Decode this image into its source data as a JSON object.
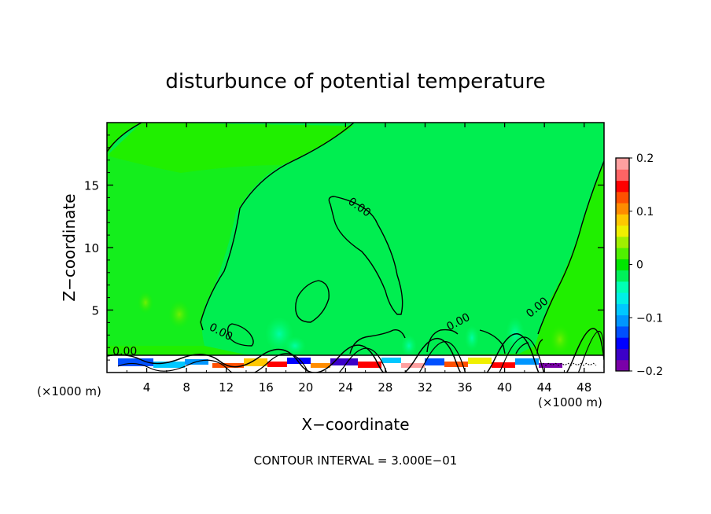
{
  "chart_data": {
    "type": "heatmap",
    "title": "disturbunce of potential temperature",
    "xlabel": "X−coordinate",
    "ylabel": "Z−coordinate",
    "x_unit_left": "(×1000 m)",
    "x_unit_right": "(×1000 m)",
    "xlim": [
      0,
      50
    ],
    "ylim": [
      0,
      20
    ],
    "x_ticks": [
      4,
      8,
      12,
      16,
      20,
      24,
      28,
      32,
      36,
      40,
      44,
      48
    ],
    "x_tick_labels": [
      "4",
      "8",
      "12",
      "16",
      "20",
      "24",
      "28",
      "32",
      "36",
      "40",
      "44",
      "48"
    ],
    "y_ticks": [
      5,
      10,
      15
    ],
    "y_tick_labels": [
      "5",
      "10",
      "15"
    ],
    "colorbar": {
      "range": [
        -0.2,
        0.2
      ],
      "tick_labels": [
        "0.2",
        "0.1",
        "0",
        "−0.1",
        "−0.2"
      ],
      "tick_values": [
        0.2,
        0.1,
        0,
        -0.1,
        -0.2
      ],
      "colors": [
        "#7a00a8",
        "#3c00c8",
        "#0000ff",
        "#0050ff",
        "#0096ff",
        "#00c8ff",
        "#00f0e6",
        "#00ffb4",
        "#00f05a",
        "#00e600",
        "#50f000",
        "#a0f000",
        "#f0f000",
        "#ffc800",
        "#ff8c00",
        "#ff5000",
        "#ff0000",
        "#ff6464",
        "#ffa0a0"
      ]
    },
    "contour_labels": [
      {
        "text": "0.00",
        "x": 1.8,
        "z": 1.4,
        "angle": 0
      },
      {
        "text": "0.00",
        "x": 11.3,
        "z": 3.0,
        "angle": 28
      },
      {
        "text": "0.00",
        "x": 25.2,
        "z": 13.0,
        "angle": 35
      },
      {
        "text": "0.00",
        "x": 35.5,
        "z": 3.8,
        "angle": -28
      },
      {
        "text": "0.00",
        "x": 43.5,
        "z": 5.0,
        "angle": -40
      }
    ],
    "contour_interval_text": "CONTOUR INTERVAL = 3.000E−01"
  }
}
